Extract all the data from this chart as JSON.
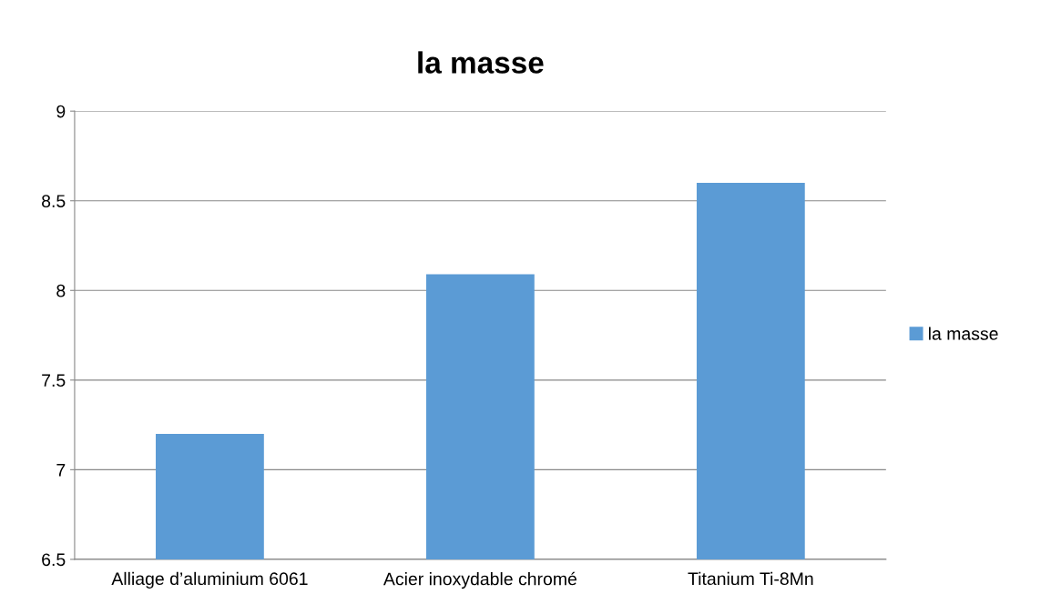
{
  "chart_data": {
    "type": "bar",
    "title": "la masse",
    "categories": [
      "Alliage d’aluminium 6061",
      "Acier inoxydable chromé",
      "Titanium Ti-8Mn"
    ],
    "series": [
      {
        "name": "la masse",
        "color": "#5b9bd5",
        "values": [
          7.2,
          8.09,
          8.6
        ]
      }
    ],
    "ylim": [
      6.5,
      9
    ],
    "yticks": [
      6.5,
      7,
      7.5,
      8,
      8.5,
      9
    ],
    "grid": "y",
    "legend": "right"
  }
}
